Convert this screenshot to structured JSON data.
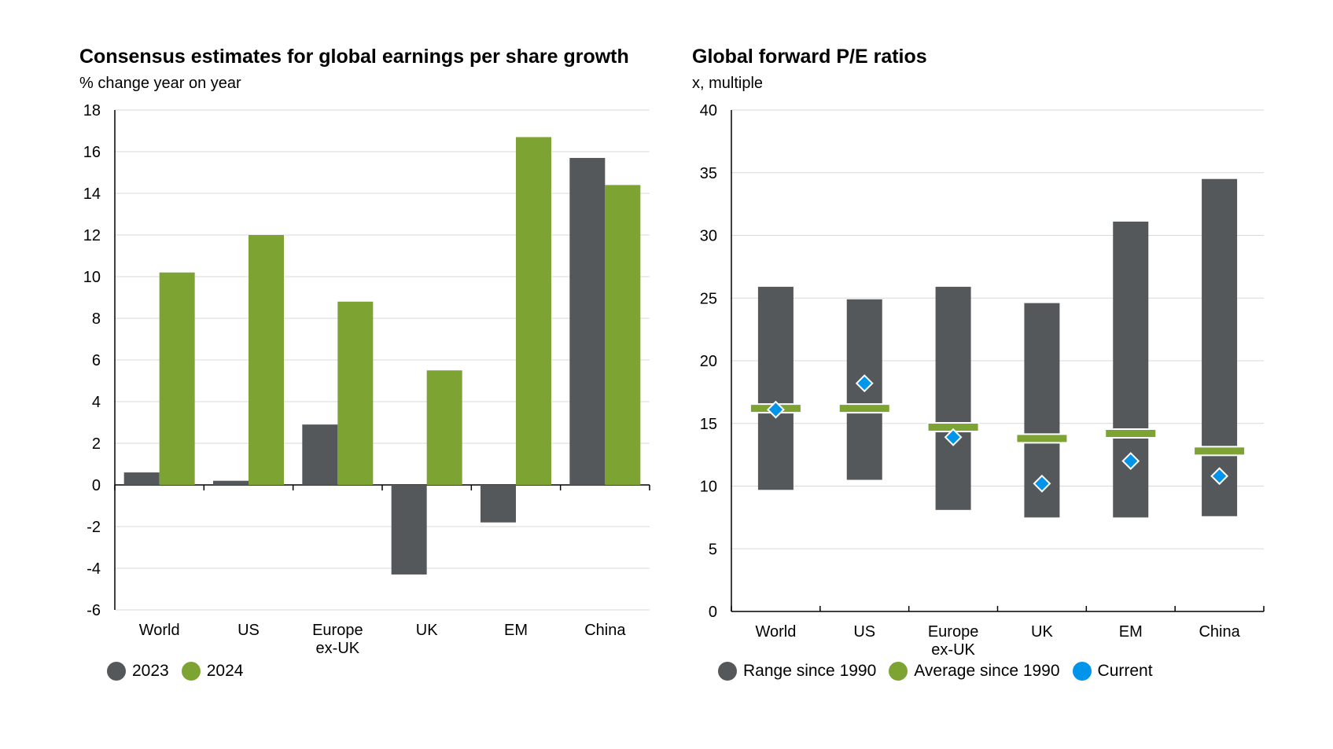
{
  "colors": {
    "dark": "#54585a",
    "green": "#7da332",
    "blue": "#0095eb",
    "grid": "#d9d9d9"
  },
  "chart_data": [
    {
      "type": "bar",
      "title": "Consensus estimates for global earnings per share growth",
      "subtitle": "% change year on year",
      "categories": [
        "World",
        "US",
        "Europe\nex-UK",
        "UK",
        "EM",
        "China"
      ],
      "series": [
        {
          "name": "2023",
          "color": "#54585a",
          "values": [
            0.6,
            0.2,
            2.9,
            -4.3,
            -1.8,
            15.7
          ]
        },
        {
          "name": "2024",
          "color": "#7da332",
          "values": [
            10.2,
            12.0,
            8.8,
            5.5,
            16.7,
            14.4
          ]
        }
      ],
      "ylim": [
        -6,
        18
      ],
      "yticks": [
        -6,
        -4,
        -2,
        0,
        2,
        4,
        6,
        8,
        10,
        12,
        14,
        16,
        18
      ],
      "grid": true,
      "legend_placement": "bottom-left"
    },
    {
      "type": "range",
      "title": "Global forward P/E ratios",
      "subtitle": "x, multiple",
      "categories": [
        "World",
        "US",
        "Europe\nex-UK",
        "UK",
        "EM",
        "China"
      ],
      "range": {
        "name": "Range since 1990",
        "color": "#54585a",
        "low": [
          9.7,
          10.5,
          8.1,
          7.5,
          7.5,
          7.6
        ],
        "high": [
          25.9,
          24.9,
          25.9,
          24.6,
          31.1,
          34.5
        ]
      },
      "average": {
        "name": "Average since 1990",
        "color": "#7da332",
        "values": [
          16.2,
          16.2,
          14.7,
          13.8,
          14.2,
          12.8
        ]
      },
      "current": {
        "name": "Current",
        "color": "#0095eb",
        "values": [
          16.1,
          18.2,
          13.9,
          10.2,
          12.0,
          10.8
        ]
      },
      "ylim": [
        0,
        40
      ],
      "yticks": [
        0,
        5,
        10,
        15,
        20,
        25,
        30,
        35,
        40
      ],
      "grid": true,
      "legend_placement": "bottom-left"
    }
  ]
}
